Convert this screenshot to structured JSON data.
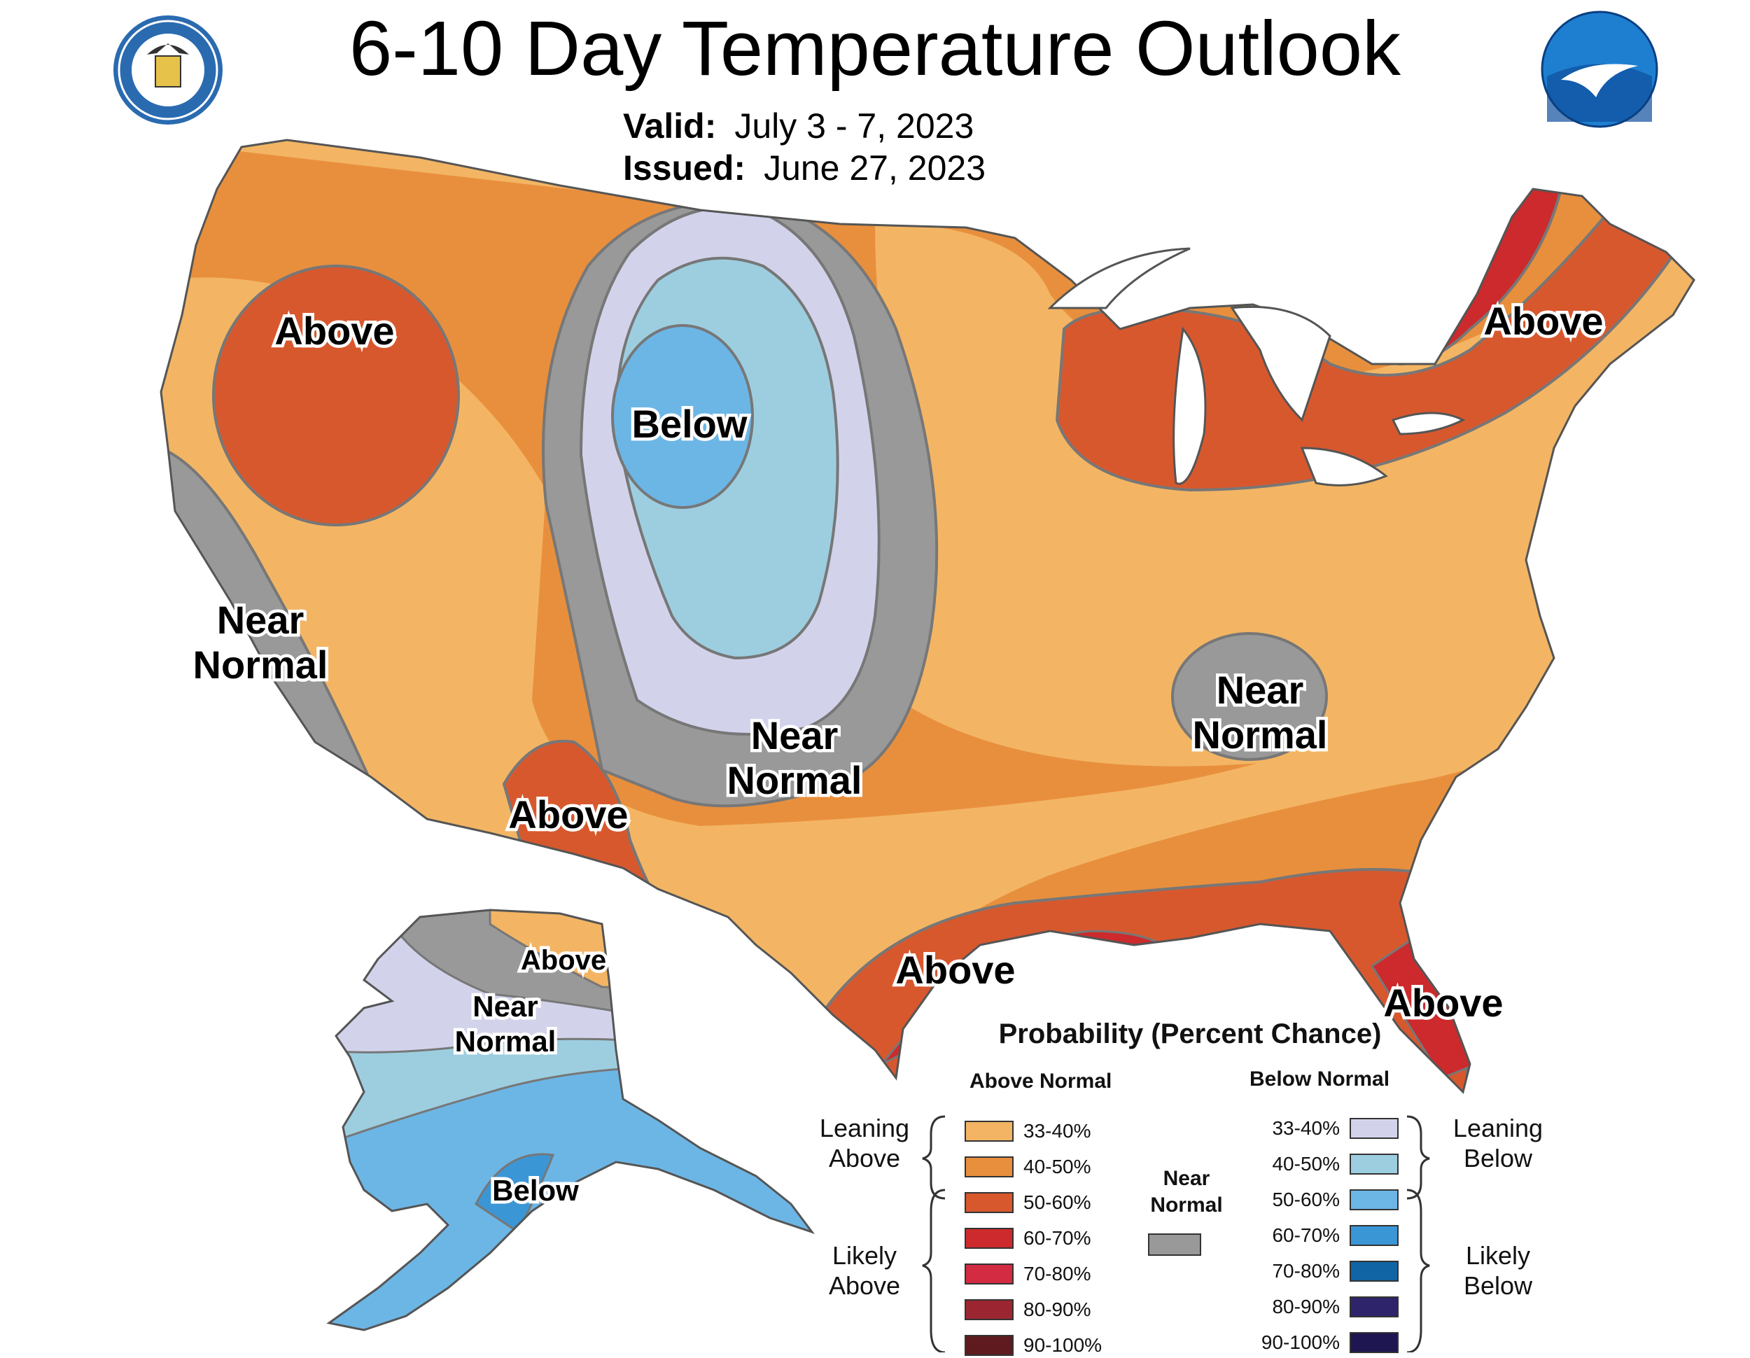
{
  "title": "6-10 Day Temperature Outlook",
  "valid_label": "Valid:",
  "valid_value": "July 3 - 7, 2023",
  "issued_label": "Issued:",
  "issued_value": "June 27, 2023",
  "logos": {
    "left": "department-of-commerce-seal",
    "right": "noaa-logo"
  },
  "regions": [
    {
      "id": "above-northwest",
      "text": "Above"
    },
    {
      "id": "below-plains",
      "text": "Below"
    },
    {
      "id": "above-northeast",
      "text": "Above"
    },
    {
      "id": "near-normal-california",
      "lines": [
        "Near",
        "Normal"
      ]
    },
    {
      "id": "near-normal-plains",
      "lines": [
        "Near",
        "Normal"
      ]
    },
    {
      "id": "near-normal-tennessee",
      "lines": [
        "Near",
        "Normal"
      ]
    },
    {
      "id": "above-southwest",
      "text": "Above"
    },
    {
      "id": "above-gulf",
      "text": "Above"
    },
    {
      "id": "above-florida",
      "text": "Above"
    },
    {
      "id": "alaska-above",
      "text": "Above"
    },
    {
      "id": "alaska-near-normal",
      "lines": [
        "Near",
        "Normal"
      ]
    },
    {
      "id": "alaska-below",
      "text": "Below"
    }
  ],
  "legend": {
    "title": "Probability (Percent Chance)",
    "above_header": "Above Normal",
    "below_header": "Below Normal",
    "near_label_lines": [
      "Near",
      "Normal"
    ],
    "near_color": "#999999",
    "leaning_above": [
      "Leaning",
      "Above"
    ],
    "likely_above": [
      "Likely",
      "Above"
    ],
    "leaning_below": [
      "Leaning",
      "Below"
    ],
    "likely_below": [
      "Likely",
      "Below"
    ],
    "above_levels": [
      {
        "label": "33-40%",
        "color": "#F3B564"
      },
      {
        "label": "40-50%",
        "color": "#E88F3D"
      },
      {
        "label": "50-60%",
        "color": "#D8582E"
      },
      {
        "label": "60-70%",
        "color": "#CC2A2C"
      },
      {
        "label": "70-80%",
        "color": "#D22B42"
      },
      {
        "label": "80-90%",
        "color": "#9B2632"
      },
      {
        "label": "90-100%",
        "color": "#5E1A1E"
      }
    ],
    "below_levels": [
      {
        "label": "33-40%",
        "color": "#D2D3EB"
      },
      {
        "label": "40-50%",
        "color": "#9DCEE0"
      },
      {
        "label": "50-60%",
        "color": "#6CB6E6"
      },
      {
        "label": "60-70%",
        "color": "#3B96D6"
      },
      {
        "label": "70-80%",
        "color": "#1164A4"
      },
      {
        "label": "80-90%",
        "color": "#2E246C"
      },
      {
        "label": "90-100%",
        "color": "#1E1650"
      }
    ]
  }
}
